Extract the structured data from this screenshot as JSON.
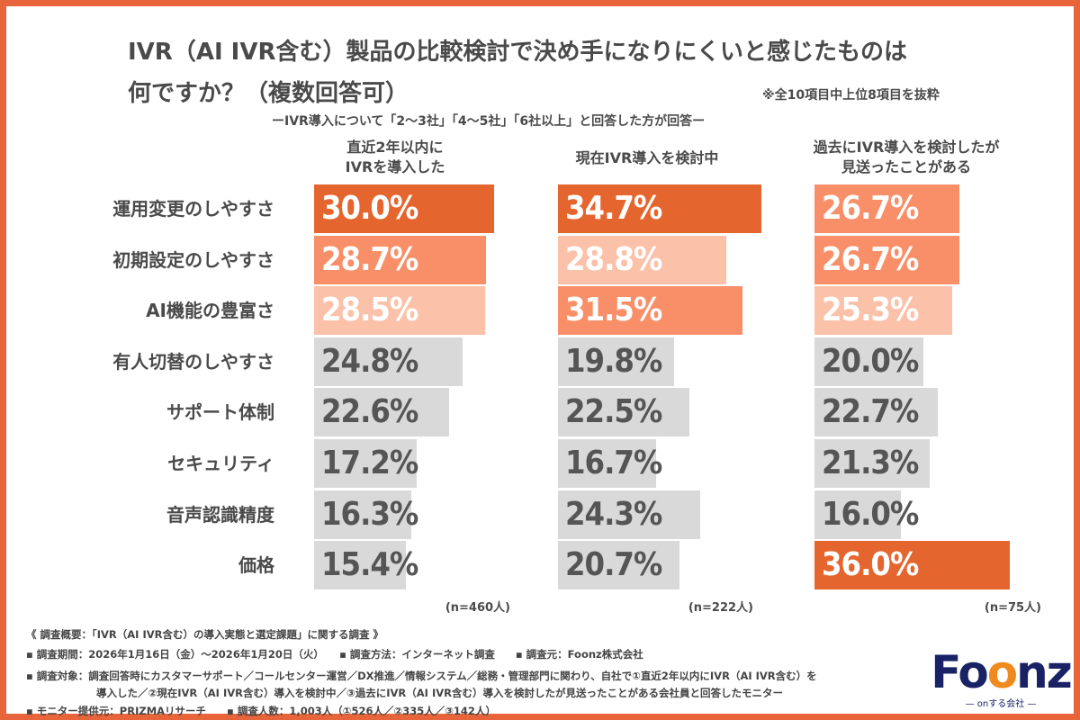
{
  "header": {
    "title_line1": "IVR（AI IVR含む）製品の比較検討で決め手になりにくいと感じたものは",
    "title_line2": "何ですか？（複数回答可）",
    "note": "※全10項目中上位8項目を抜粋",
    "subtitle": "ーIVR導入について「2〜3社」「4〜5社」「6社以上」と回答した方が回答ー"
  },
  "colors": {
    "rank1": "#E5652F",
    "rank2": "#F98F68",
    "rank3": "#FCC1A9",
    "other": "#D9D9D9",
    "value_on_color": "#FFFFFF",
    "value_on_gray": "#555555",
    "frame": "#E8643A"
  },
  "chart_data": {
    "type": "bar",
    "orientation": "horizontal",
    "categories": [
      "運用変更のしやすさ",
      "初期設定のしやすさ",
      "AI機能の豊富さ",
      "有人切替のしやすさ",
      "サポート体制",
      "セキュリティ",
      "音声認識精度",
      "価格"
    ],
    "series": [
      {
        "name": "直近2年以内にIVRを導入した",
        "header_lines": [
          "直近2年以内に",
          "IVRを導入した"
        ],
        "n_label": "(n=460人)",
        "values": [
          30.0,
          28.7,
          28.5,
          24.8,
          22.6,
          17.2,
          16.3,
          15.4
        ],
        "highlight": [
          "rank1",
          "rank2",
          "rank3",
          "other",
          "other",
          "other",
          "other",
          "other"
        ]
      },
      {
        "name": "現在IVR導入を検討中",
        "header_lines": [
          "現在IVR導入を検討中"
        ],
        "n_label": "(n=222人)",
        "values": [
          34.7,
          28.8,
          31.5,
          19.8,
          22.5,
          16.7,
          24.3,
          20.7
        ],
        "highlight": [
          "rank1",
          "rank3",
          "rank2",
          "other",
          "other",
          "other",
          "other",
          "other"
        ]
      },
      {
        "name": "過去にIVR導入を検討したが見送ったことがある",
        "header_lines": [
          "過去にIVR導入を検討したが",
          "見送ったことがある"
        ],
        "n_label": "(n=75人)",
        "values": [
          26.7,
          26.7,
          25.3,
          20.0,
          22.7,
          21.3,
          16.0,
          36.0
        ],
        "highlight": [
          "rank2",
          "rank2",
          "rank3",
          "other",
          "other",
          "other",
          "other",
          "rank1"
        ]
      }
    ],
    "value_format": "%",
    "grid": false,
    "legend": "none"
  },
  "footer": {
    "overview": "《 調査概要：「IVR（AI IVR含む）の導入実態と選定課題」に関する調査 》",
    "line1": "▪ 調査期間：2026年1月16日（金）〜2026年1月20日（火）　　▪ 調査方法：インターネット調査　　▪ 調査元：Foonz株式会社",
    "line2": "▪ 調査対象：調査回答時にカスタマーサポート／コールセンター運営／DX推進／情報システム／総務・管理部門に関わり、自社で①直近2年以内にIVR（AI IVR含む）を",
    "line3": "導入した／②現在IVR（AI IVR含む）導入を検討中／③過去にIVR（AI IVR含む）導入を検討したが見送ったことがある会社員と回答したモニター",
    "line4": "▪ モニター提供元：PRIZMAリサーチ　　▪ 調査人数：1,003人（①526人／②335人／③142人）"
  },
  "logo": {
    "name": "Foonz",
    "tagline": "— onする会社 —"
  }
}
